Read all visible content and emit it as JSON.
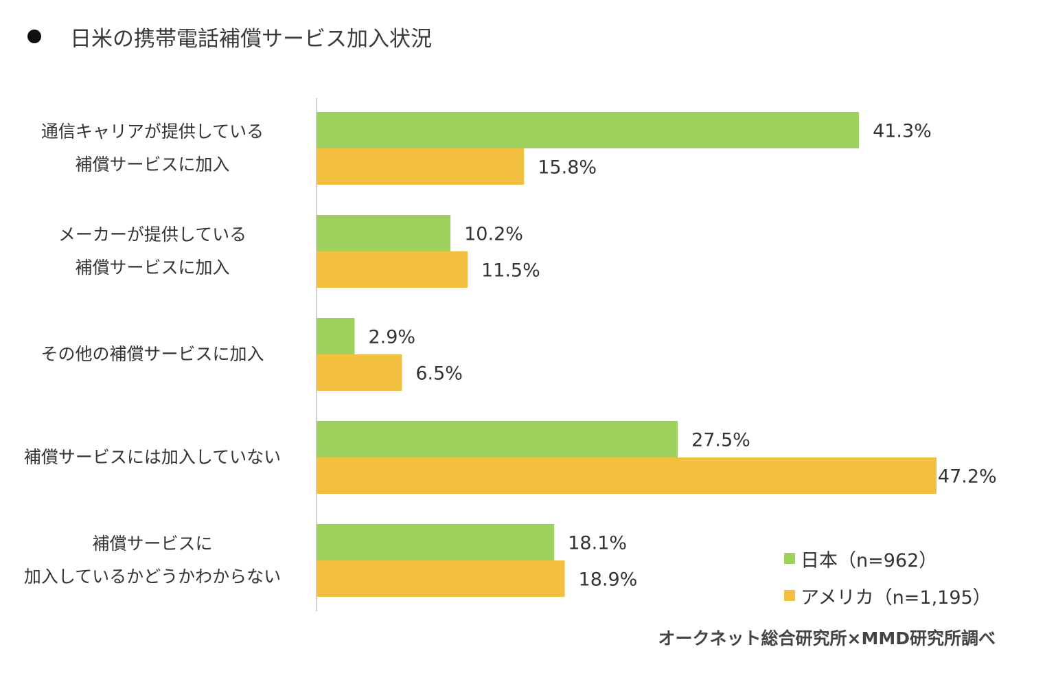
{
  "title": "日米の携帯電話補償サービス加入状況",
  "source": "オークネット総合研究所×MMD研究所調べ",
  "colors": {
    "japan": "#9fd15f",
    "usa": "#f2bf3e",
    "axis": "#cfcfcf"
  },
  "chart_data": {
    "type": "bar",
    "orientation": "horizontal",
    "categories": [
      [
        "通信キャリアが提供している",
        "補償サービスに加入"
      ],
      [
        "メーカーが提供している",
        "補償サービスに加入"
      ],
      [
        "その他の補償サービスに加入"
      ],
      [
        "補償サービスには加入していない"
      ],
      [
        "補償サービスに",
        "加入しているかどうかわからない"
      ]
    ],
    "series": [
      {
        "name": "日本（n=962）",
        "values": [
          41.3,
          10.2,
          2.9,
          27.5,
          18.1
        ],
        "labels": [
          "41.3%",
          "10.2%",
          "2.9%",
          "27.5%",
          "18.1%"
        ],
        "color": "#9fd15f"
      },
      {
        "name": "アメリカ（n=1,195）",
        "values": [
          15.8,
          11.5,
          6.5,
          47.2,
          18.9
        ],
        "labels": [
          "15.8%",
          "11.5%",
          "6.5%",
          "47.2%",
          "18.9%"
        ],
        "color": "#f2bf3e"
      }
    ],
    "xlim": [
      0,
      50
    ],
    "grid": false,
    "legend_position": "bottom-right"
  }
}
